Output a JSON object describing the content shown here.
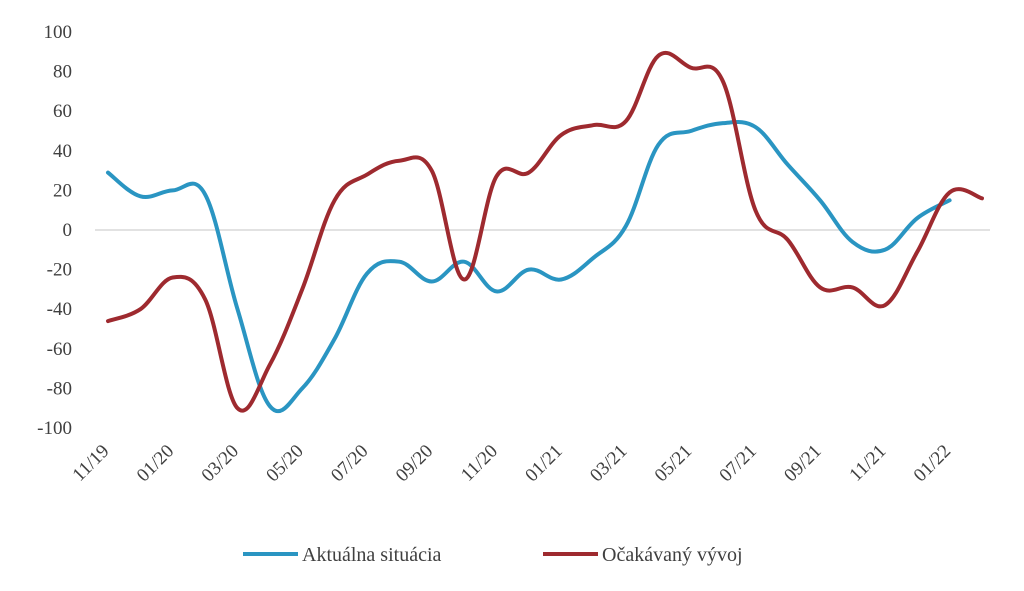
{
  "chart_data": {
    "type": "line",
    "title": "",
    "xlabel": "",
    "ylabel": "",
    "ylim": [
      -100,
      100
    ],
    "yticks": [
      100,
      80,
      60,
      40,
      20,
      0,
      -20,
      -40,
      -60,
      -80,
      -100
    ],
    "grid": false,
    "legend_position": "bottom",
    "x": [
      "11/19",
      "12/19",
      "01/20",
      "02/20",
      "03/20",
      "04/20",
      "05/20",
      "06/20",
      "07/20",
      "08/20",
      "09/20",
      "10/20",
      "11/20",
      "12/20",
      "01/21",
      "02/21",
      "03/21",
      "04/21",
      "05/21",
      "06/21",
      "07/21",
      "08/21",
      "09/21",
      "10/21",
      "11/21",
      "12/21",
      "01/22",
      "02/22"
    ],
    "xtick_labels": [
      "11/19",
      "01/20",
      "03/20",
      "05/20",
      "07/20",
      "09/20",
      "11/20",
      "01/21",
      "03/21",
      "05/21",
      "07/21",
      "09/21",
      "11/21",
      "01/22"
    ],
    "series": [
      {
        "name": "Aktuálna situácia",
        "color": "#2a95c2",
        "values": [
          29,
          17,
          20,
          18,
          -40,
          -89,
          -80,
          -55,
          -22,
          -16,
          -26,
          -16,
          -31,
          -20,
          -25,
          -14,
          2,
          43,
          50,
          54,
          52,
          33,
          15,
          -6,
          -10,
          6,
          15,
          null
        ]
      },
      {
        "name": "Očakávaný vývoj",
        "color": "#9e2a2f",
        "values": [
          -46,
          -40,
          -24,
          -35,
          -90,
          -68,
          -30,
          15,
          28,
          35,
          30,
          -25,
          27,
          29,
          48,
          53,
          55,
          88,
          82,
          75,
          10,
          -5,
          -29,
          -29,
          -38,
          -11,
          19,
          16
        ]
      }
    ]
  }
}
